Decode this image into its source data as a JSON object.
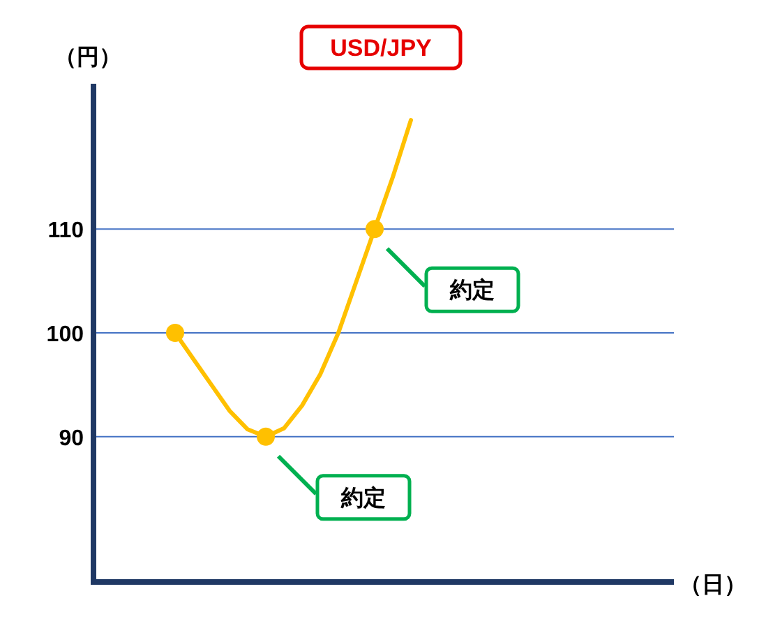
{
  "chart_data": {
    "type": "line",
    "title": "USD/JPY",
    "xlabel": "（日）",
    "ylabel": "（円）",
    "ylim": [
      76,
      124
    ],
    "yticks": [
      90,
      100,
      110
    ],
    "grid": "y",
    "tick_labels": "y",
    "categories": [
      null,
      null,
      null,
      null,
      null,
      null,
      null,
      null,
      null,
      null,
      null,
      null,
      null,
      null,
      null,
      null,
      null,
      null,
      null,
      null,
      null,
      null,
      null,
      null,
      null,
      null,
      null,
      null,
      null,
      null,
      null,
      null
    ],
    "series": [
      {
        "type": "line",
        "color": "#ffc000",
        "marker": "none",
        "values": [
          null,
          null,
          null,
          null,
          100,
          97.5,
          95,
          92.5,
          90.7,
          90,
          90.8,
          93,
          96,
          100,
          105,
          110,
          115,
          120.5,
          null,
          null,
          null,
          null,
          null,
          null,
          null,
          null,
          null,
          null,
          null,
          null,
          null,
          null
        ]
      },
      {
        "type": "scatter",
        "color": "#ffc000",
        "marker": "circle",
        "values": [
          null,
          null,
          null,
          null,
          100,
          null,
          null,
          null,
          null,
          90,
          null,
          null,
          null,
          null,
          null,
          110,
          null,
          null,
          null,
          null,
          null,
          null,
          null,
          null,
          null,
          null,
          null,
          null,
          null,
          null,
          null,
          null
        ]
      }
    ],
    "annotations": [
      "約定",
      "約定"
    ]
  }
}
